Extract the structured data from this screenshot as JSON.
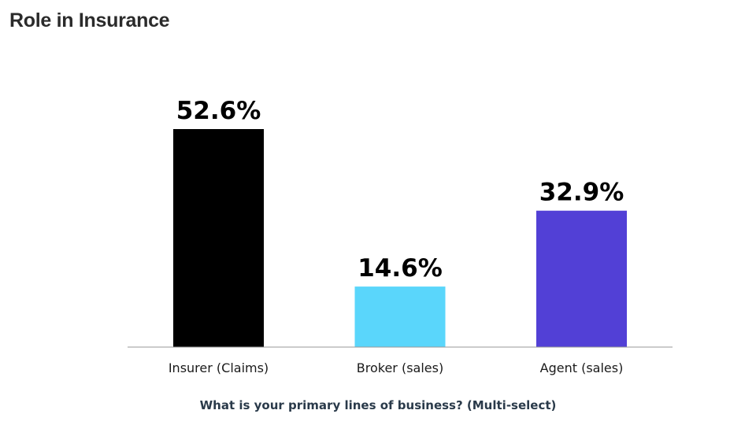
{
  "chart_data": {
    "type": "bar",
    "title": "Role in Insurance",
    "xlabel": "What is your primary lines of business? (Multi-select)",
    "ylabel": "",
    "categories": [
      "Insurer (Claims)",
      "Broker (sales)",
      "Agent (sales)"
    ],
    "values": [
      52.6,
      14.6,
      32.9
    ],
    "value_labels": [
      "52.6%",
      "14.6%",
      "32.9%"
    ],
    "colors": [
      "#000000",
      "#5ad6fb",
      "#5240d6"
    ],
    "ylim": [
      0,
      60
    ],
    "grid": false,
    "legend": "none"
  }
}
